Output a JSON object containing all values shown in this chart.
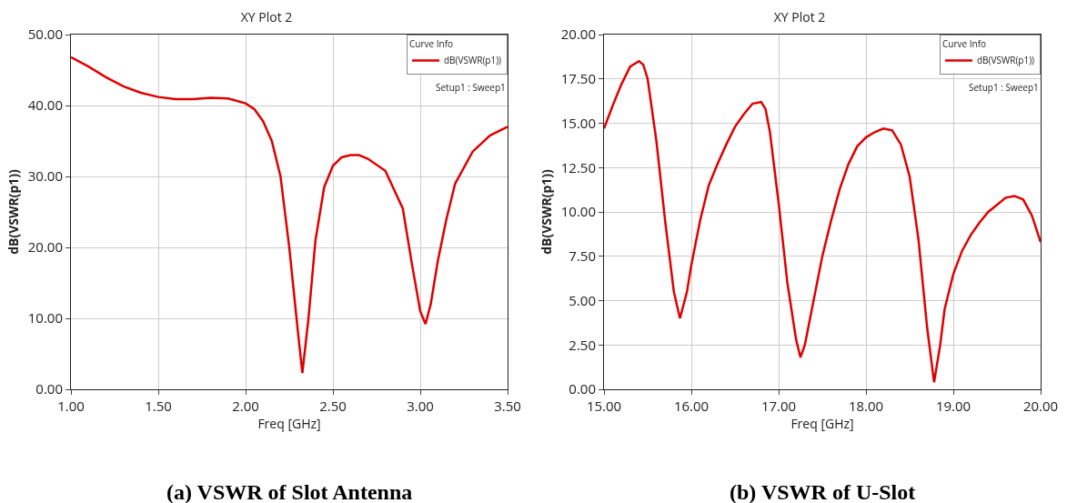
{
  "chart_data": [
    {
      "type": "line",
      "title": "XY Plot 2",
      "xlabel": "Freq [GHz]",
      "ylabel": "dB(VSWR(p1))",
      "legend_title": "Curve Info",
      "legend": "top right",
      "grid": true,
      "marker": "none",
      "line_style": "solid",
      "annotations": [
        "Setup1 : Sweep1",
        "(a) VSWR of Slot Antenna"
      ],
      "xlim": [
        1,
        3.5
      ],
      "xticks": [
        {
          "value": 1,
          "label": "1.00"
        },
        {
          "value": 1.5,
          "label": "1.50"
        },
        {
          "value": 2,
          "label": "2.00"
        },
        {
          "value": 2.5,
          "label": "2.50"
        },
        {
          "value": 3,
          "label": "3.00"
        },
        {
          "value": 3.5,
          "label": "3.50"
        }
      ],
      "ylim": [
        0,
        50
      ],
      "yticks": [
        {
          "value": 0,
          "label": "0.00"
        },
        {
          "value": 10,
          "label": "10.00"
        },
        {
          "value": 20,
          "label": "20.00"
        },
        {
          "value": 30,
          "label": "30.00"
        },
        {
          "value": 40,
          "label": "40.00"
        },
        {
          "value": 50,
          "label": "50.00"
        }
      ],
      "x": [
        1.0,
        1.1,
        1.2,
        1.3,
        1.4,
        1.5,
        1.6,
        1.7,
        1.8,
        1.9,
        2.0,
        2.05,
        2.1,
        2.15,
        2.2,
        2.25,
        2.3,
        2.325,
        2.36,
        2.4,
        2.45,
        2.5,
        2.55,
        2.6,
        2.65,
        2.7,
        2.8,
        2.9,
        2.95,
        3.0,
        3.03,
        3.06,
        3.1,
        3.15,
        3.2,
        3.3,
        3.4,
        3.5
      ],
      "series": [
        {
          "name": "dB(VSWR(p1))",
          "color": "#e00000",
          "values": [
            46.8,
            45.5,
            44.0,
            42.7,
            41.8,
            41.2,
            40.9,
            40.9,
            41.1,
            41.0,
            40.3,
            39.5,
            37.8,
            35,
            30,
            20,
            8,
            2.3,
            10,
            21,
            28.5,
            31.5,
            32.7,
            33.0,
            33.0,
            32.5,
            30.8,
            25.5,
            18,
            11,
            9.2,
            12,
            18,
            24,
            29,
            33.5,
            35.8,
            37.0
          ]
        }
      ]
    },
    {
      "type": "line",
      "title": "XY Plot 2",
      "xlabel": "Freq [GHz]",
      "ylabel": "dB(VSWR(p1))",
      "legend_title": "Curve Info",
      "legend": "top right",
      "grid": true,
      "marker": "none",
      "line_style": "solid",
      "annotations": [
        "Setup1 : Sweep1",
        "(b) VSWR of U-Slot"
      ],
      "xlim": [
        15,
        20
      ],
      "xticks": [
        {
          "value": 15,
          "label": "15.00"
        },
        {
          "value": 16,
          "label": "16.00"
        },
        {
          "value": 17,
          "label": "17.00"
        },
        {
          "value": 18,
          "label": "18.00"
        },
        {
          "value": 19,
          "label": "19.00"
        },
        {
          "value": 20,
          "label": "20.00"
        }
      ],
      "ylim": [
        0,
        20
      ],
      "yticks": [
        {
          "value": 0,
          "label": "0.00"
        },
        {
          "value": 2.5,
          "label": "2.50"
        },
        {
          "value": 5,
          "label": "5.00"
        },
        {
          "value": 7.5,
          "label": "7.50"
        },
        {
          "value": 10,
          "label": "10.00"
        },
        {
          "value": 12.5,
          "label": "12.50"
        },
        {
          "value": 15,
          "label": "15.00"
        },
        {
          "value": 17.5,
          "label": "17.50"
        },
        {
          "value": 20,
          "label": "20.00"
        }
      ],
      "x": [
        15.0,
        15.1,
        15.2,
        15.3,
        15.4,
        15.45,
        15.5,
        15.6,
        15.7,
        15.8,
        15.87,
        15.95,
        16.0,
        16.1,
        16.2,
        16.3,
        16.4,
        16.5,
        16.6,
        16.7,
        16.8,
        16.85,
        16.9,
        17.0,
        17.1,
        17.2,
        17.25,
        17.3,
        17.4,
        17.5,
        17.6,
        17.7,
        17.8,
        17.9,
        18.0,
        18.1,
        18.2,
        18.3,
        18.4,
        18.5,
        18.6,
        18.7,
        18.78,
        18.85,
        18.9,
        19.0,
        19.1,
        19.2,
        19.3,
        19.4,
        19.5,
        19.6,
        19.7,
        19.8,
        19.9,
        20.0
      ],
      "series": [
        {
          "name": "dB(VSWR(p1))",
          "color": "#e00000",
          "values": [
            14.7,
            16.0,
            17.2,
            18.2,
            18.5,
            18.3,
            17.5,
            14.0,
            9.5,
            5.5,
            4.0,
            5.5,
            7.0,
            9.5,
            11.5,
            12.7,
            13.8,
            14.8,
            15.5,
            16.1,
            16.2,
            15.8,
            14.5,
            10.5,
            6.0,
            2.8,
            1.8,
            2.5,
            5.0,
            7.5,
            9.5,
            11.3,
            12.7,
            13.7,
            14.2,
            14.5,
            14.7,
            14.6,
            13.8,
            12.0,
            8.5,
            3.5,
            0.4,
            2.5,
            4.5,
            6.5,
            7.8,
            8.7,
            9.4,
            10.0,
            10.4,
            10.8,
            10.9,
            10.7,
            9.8,
            8.3
          ]
        }
      ]
    }
  ]
}
